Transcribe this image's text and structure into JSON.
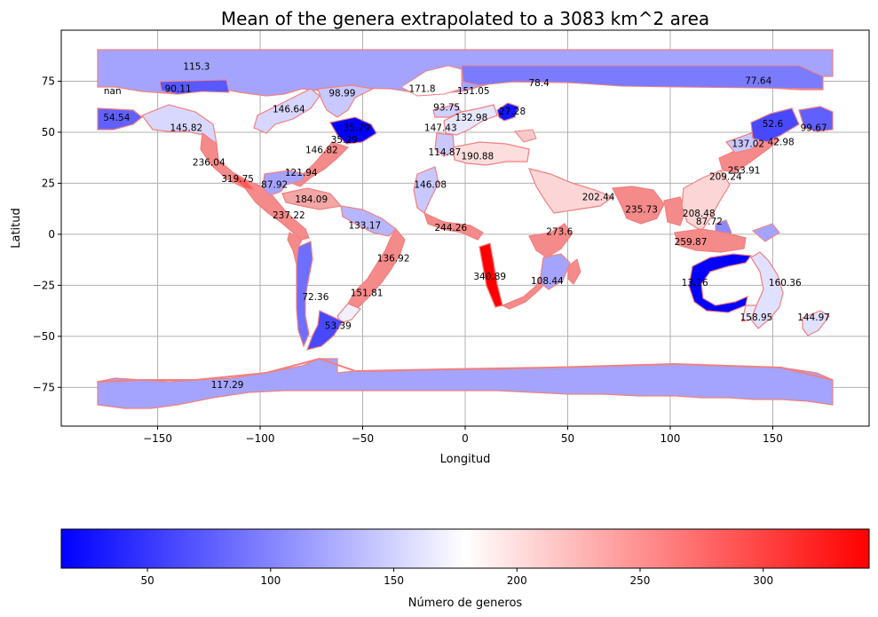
{
  "title": "Mean of the genera extrapolated to a 3083 km^2 area",
  "xlabel": "Longitud",
  "ylabel": "Latitud",
  "xticks": [
    "−150",
    "−100",
    "−50",
    "0",
    "50",
    "100",
    "150"
  ],
  "yticks": [
    "75",
    "50",
    "25",
    "0",
    "−25",
    "−50",
    "−75"
  ],
  "colorbar": {
    "label": "Número de generos",
    "ticks": [
      "50",
      "100",
      "150",
      "200",
      "250",
      "300"
    ],
    "min": 15,
    "max": 343,
    "colors": [
      "#0000ff",
      "#ffffff",
      "#ff0000"
    ]
  },
  "grid": true,
  "chart_data": {
    "type": "map",
    "xlim": [
      -197,
      197
    ],
    "ylim": [
      -94,
      100
    ],
    "regions": [
      {
        "label": "115.3",
        "lon": -131,
        "lat": 82,
        "value": 115.3
      },
      {
        "label": "nan",
        "lon": -172,
        "lat": 70,
        "value": null
      },
      {
        "label": "90.11",
        "lon": -140,
        "lat": 71,
        "value": 90.11
      },
      {
        "label": "54.54",
        "lon": -170,
        "lat": 57,
        "value": 54.54
      },
      {
        "label": "145.82",
        "lon": -136,
        "lat": 52,
        "value": 145.82
      },
      {
        "label": "146.64",
        "lon": -86,
        "lat": 61,
        "value": 146.64
      },
      {
        "label": "98.99",
        "lon": -60,
        "lat": 69,
        "value": 98.99
      },
      {
        "label": "35.79",
        "lon": -53,
        "lat": 52,
        "value": 35.79
      },
      {
        "label": "35.29",
        "lon": -59,
        "lat": 46,
        "value": 35.29
      },
      {
        "label": "146.82",
        "lon": -70,
        "lat": 41,
        "value": 146.82
      },
      {
        "label": "236.04",
        "lon": -125,
        "lat": 35,
        "value": 236.04
      },
      {
        "label": "319.75",
        "lon": -111,
        "lat": 27,
        "value": 319.75
      },
      {
        "label": "121.94",
        "lon": -80,
        "lat": 30,
        "value": 121.94
      },
      {
        "label": "87.92",
        "lon": -93,
        "lat": 24,
        "value": 87.92
      },
      {
        "label": "184.09",
        "lon": -75,
        "lat": 17,
        "value": 184.09
      },
      {
        "label": "237.22",
        "lon": -86,
        "lat": 9,
        "value": 237.22
      },
      {
        "label": "133.17",
        "lon": -49,
        "lat": 4,
        "value": 133.17
      },
      {
        "label": "136.92",
        "lon": -35,
        "lat": -12,
        "value": 136.92
      },
      {
        "label": "72.36",
        "lon": -73,
        "lat": -31,
        "value": 72.36
      },
      {
        "label": "151.81",
        "lon": -48,
        "lat": -29,
        "value": 151.81
      },
      {
        "label": "53.39",
        "lon": -62,
        "lat": -45,
        "value": 53.39
      },
      {
        "label": "117.29",
        "lon": -116,
        "lat": -74,
        "value": 117.29
      },
      {
        "label": "171.8",
        "lon": -21,
        "lat": 71,
        "value": 171.8
      },
      {
        "label": "151.05",
        "lon": 4,
        "lat": 70,
        "value": 151.05
      },
      {
        "label": "78.4",
        "lon": 36,
        "lat": 74,
        "value": 78.4
      },
      {
        "label": "93.75",
        "lon": -9,
        "lat": 62,
        "value": 93.75
      },
      {
        "label": "132.98",
        "lon": 3,
        "lat": 57,
        "value": 132.98
      },
      {
        "label": "27.28",
        "lon": 23,
        "lat": 60,
        "value": 27.28
      },
      {
        "label": "147.43",
        "lon": -12,
        "lat": 52,
        "value": 147.43
      },
      {
        "label": "114.87",
        "lon": -10,
        "lat": 40,
        "value": 114.87
      },
      {
        "label": "190.88",
        "lon": 6,
        "lat": 38,
        "value": 190.88
      },
      {
        "label": "146.08",
        "lon": -17,
        "lat": 24,
        "value": 146.08
      },
      {
        "label": "244.26",
        "lon": -7,
        "lat": 3,
        "value": 244.26
      },
      {
        "label": "340.89",
        "lon": 12,
        "lat": -21,
        "value": 340.89
      },
      {
        "label": "108.44",
        "lon": 40,
        "lat": -23,
        "value": 108.44
      },
      {
        "label": "273.6",
        "lon": 46,
        "lat": 1,
        "value": 273.6
      },
      {
        "label": "202.44",
        "lon": 65,
        "lat": 18,
        "value": 202.44
      },
      {
        "label": "235.73",
        "lon": 86,
        "lat": 12,
        "value": 235.73
      },
      {
        "label": "77.64",
        "lon": 143,
        "lat": 75,
        "value": 77.64
      },
      {
        "label": "52.6",
        "lon": 150,
        "lat": 54,
        "value": 52.6
      },
      {
        "label": "99.67",
        "lon": 170,
        "lat": 52,
        "value": 99.67
      },
      {
        "label": "137.02",
        "lon": 138,
        "lat": 44,
        "value": 137.02
      },
      {
        "label": "42.98",
        "lon": 154,
        "lat": 45,
        "value": 42.98
      },
      {
        "label": "253.91",
        "lon": 136,
        "lat": 31,
        "value": 253.91
      },
      {
        "label": "209.24",
        "lon": 127,
        "lat": 28,
        "value": 209.24
      },
      {
        "label": "208.48",
        "lon": 114,
        "lat": 10,
        "value": 208.48
      },
      {
        "label": "87.72",
        "lon": 119,
        "lat": 6,
        "value": 87.72
      },
      {
        "label": "259.87",
        "lon": 110,
        "lat": -4,
        "value": 259.87
      },
      {
        "label": "13.16",
        "lon": 112,
        "lat": -24,
        "value": 13.16
      },
      {
        "label": "160.36",
        "lon": 156,
        "lat": -24,
        "value": 160.36
      },
      {
        "label": "158.95",
        "lon": 142,
        "lat": -41,
        "value": 158.95
      },
      {
        "label": "144.97",
        "lon": 170,
        "lat": -41,
        "value": 144.97
      }
    ]
  }
}
